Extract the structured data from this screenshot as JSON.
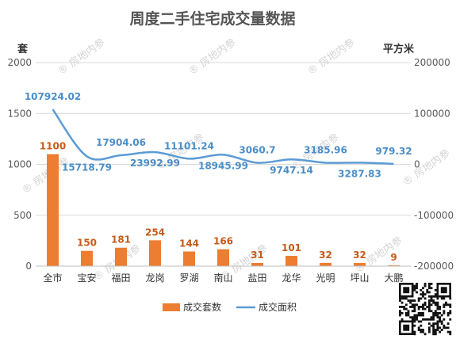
{
  "chart_data": {
    "type": "bar",
    "title": "周度二手住宅成交量数据",
    "categories": [
      "全市",
      "宝安",
      "福田",
      "龙岗",
      "罗湖",
      "南山",
      "盐田",
      "龙华",
      "光明",
      "坪山",
      "大鹏"
    ],
    "y_left": {
      "unit": "套",
      "ylim": [
        0,
        2000
      ],
      "ticks": [
        "0",
        "500",
        "1000",
        "1500",
        "2000"
      ]
    },
    "y_right": {
      "unit": "平方米",
      "ylim": [
        -200000,
        200000
      ],
      "ticks": [
        "-200000",
        "-100000",
        "0",
        "100000",
        "200000"
      ]
    },
    "series": [
      {
        "name": "成交套数",
        "type": "bar",
        "axis": "left",
        "values": [
          1100,
          150,
          181,
          254,
          144,
          166,
          31,
          101,
          32,
          32,
          9
        ],
        "labels": [
          "1100",
          "150",
          "181",
          "254",
          "144",
          "166",
          "31",
          "101",
          "32",
          "32",
          "9"
        ],
        "color": "#ed7d31"
      },
      {
        "name": "成交面积",
        "type": "line",
        "axis": "right",
        "values": [
          107924.02,
          15718.79,
          17904.06,
          23992.99,
          11101.24,
          18945.99,
          3060.7,
          9747.14,
          3185.96,
          3287.83,
          979.32
        ],
        "labels": [
          "107924.02",
          "15718.79",
          "17904.06",
          "23992.99",
          "11101.24",
          "18945.99",
          "3060.7",
          "9747.14",
          "3185.96",
          "3287.83",
          "979.32"
        ],
        "color": "#5b9bd5"
      }
    ],
    "grid": true,
    "legend_position": "bottom"
  },
  "watermark": {
    "text": "房地内参"
  }
}
